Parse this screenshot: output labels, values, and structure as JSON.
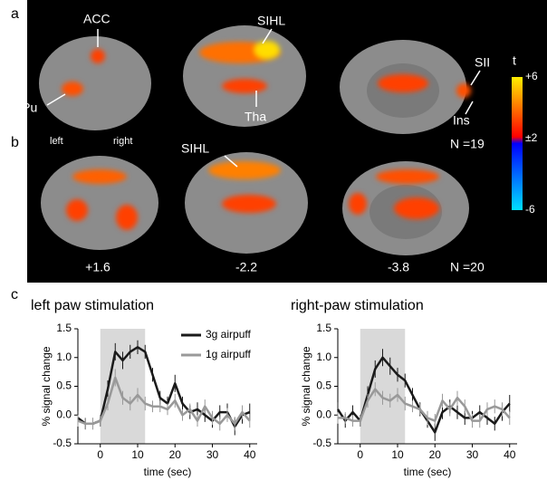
{
  "panel_labels": {
    "a": "a",
    "b": "b",
    "c": "c"
  },
  "brain_panel": {
    "structures": {
      "acc": "ACC",
      "sihl_a": "SIHL",
      "sii": "SII",
      "cpu": "CPu",
      "tha": "Tha",
      "ins": "Ins",
      "sihl_b": "SIHL"
    },
    "sides": {
      "left": "left",
      "right": "right"
    },
    "n_a": "N =19",
    "n_b": "N =20",
    "slice_positions": [
      "+1.6",
      "-2.2",
      "-3.8"
    ],
    "colorbar": {
      "title": "t",
      "labels": [
        "+6",
        "±2",
        "-6"
      ]
    }
  },
  "chart_data": [
    {
      "type": "line",
      "title": "left paw stimulation",
      "xlabel": "time (sec)",
      "ylabel": "% signal change",
      "x": [
        -6,
        -4,
        -2,
        0,
        2,
        4,
        6,
        8,
        10,
        12,
        14,
        16,
        18,
        20,
        22,
        24,
        26,
        28,
        30,
        32,
        34,
        36,
        38,
        40
      ],
      "xlim": [
        -6,
        42
      ],
      "xticks": [
        0,
        10,
        20,
        30,
        40
      ],
      "ylim": [
        -0.5,
        1.5
      ],
      "yticks": [
        -0.5,
        {
          "value": 0,
          "label": "0.0"
        },
        {
          "value": 0.5,
          "label": "0.5"
        },
        {
          "value": 1,
          "label": "1.0"
        },
        1.5
      ],
      "highlight": [
        0,
        12
      ],
      "highlight_color": "#d9d9d9",
      "legend": "upper right",
      "series": [
        {
          "name": "3g airpuff",
          "color": "#1a1a1a",
          "values": [
            -0.05,
            -0.15,
            -0.15,
            -0.1,
            0.45,
            1.1,
            0.95,
            1.1,
            1.18,
            1.1,
            0.7,
            0.3,
            0.2,
            0.55,
            0.2,
            0.05,
            0.1,
            0,
            -0.1,
            0.05,
            0.05,
            -0.2,
            0,
            0.05
          ],
          "errors": [
            0.12,
            0.1,
            0.1,
            0.1,
            0.15,
            0.15,
            0.15,
            0.12,
            0.12,
            0.12,
            0.12,
            0.12,
            0.12,
            0.15,
            0.12,
            0.12,
            0.12,
            0.12,
            0.12,
            0.12,
            0.15,
            0.15,
            0.15,
            0.15
          ]
        },
        {
          "name": "1g airpuff",
          "color": "#999999",
          "values": [
            -0.1,
            -0.15,
            -0.15,
            -0.1,
            0.2,
            0.65,
            0.3,
            0.2,
            0.35,
            0.2,
            0.15,
            0.15,
            0.1,
            0.25,
            0,
            0.1,
            -0.1,
            0.15,
            -0.05,
            -0.15,
            0,
            -0.15,
            0.05,
            -0.1
          ],
          "errors": [
            0.1,
            0.1,
            0.1,
            0.1,
            0.12,
            0.15,
            0.12,
            0.12,
            0.12,
            0.12,
            0.1,
            0.1,
            0.1,
            0.12,
            0.1,
            0.1,
            0.1,
            0.12,
            0.12,
            0.12,
            0.12,
            0.12,
            0.12,
            0.12
          ]
        }
      ]
    },
    {
      "type": "line",
      "title": "right-paw stimulation",
      "xlabel": "time (sec)",
      "ylabel": "% signal change",
      "x": [
        -6,
        -4,
        -2,
        0,
        2,
        4,
        6,
        8,
        10,
        12,
        14,
        16,
        18,
        20,
        22,
        24,
        26,
        28,
        30,
        32,
        34,
        36,
        38,
        40
      ],
      "xlim": [
        -6,
        42
      ],
      "xticks": [
        0,
        10,
        20,
        30,
        40
      ],
      "ylim": [
        -0.5,
        1.5
      ],
      "yticks": [
        -0.5,
        {
          "value": 0,
          "label": "0.0"
        },
        {
          "value": 0.5,
          "label": "0.5"
        },
        {
          "value": 1,
          "label": "1.0"
        },
        1.5
      ],
      "highlight": [
        0,
        12
      ],
      "highlight_color": "#d9d9d9",
      "series": [
        {
          "color": "#1a1a1a",
          "values": [
            0.1,
            -0.1,
            0.05,
            -0.1,
            0.35,
            0.8,
            1.0,
            0.85,
            0.7,
            0.6,
            0.35,
            0.1,
            -0.1,
            -0.3,
            0.05,
            0.15,
            0.05,
            -0.05,
            -0.05,
            0.05,
            -0.05,
            -0.15,
            0.05,
            0.2
          ],
          "errors": [
            0.12,
            0.12,
            0.12,
            0.1,
            0.15,
            0.15,
            0.15,
            0.15,
            0.12,
            0.12,
            0.12,
            0.12,
            0.12,
            0.15,
            0.12,
            0.12,
            0.12,
            0.12,
            0.12,
            0.12,
            0.12,
            0.12,
            0.15,
            0.15
          ]
        },
        {
          "color": "#999999",
          "values": [
            -0.05,
            -0.05,
            -0.1,
            -0.1,
            0.25,
            0.45,
            0.3,
            0.25,
            0.35,
            0.2,
            0.15,
            0.1,
            -0.05,
            -0.1,
            0.25,
            0.1,
            0.3,
            0.15,
            -0.1,
            -0.1,
            0.1,
            0.15,
            0.1,
            -0.05
          ],
          "errors": [
            0.1,
            0.1,
            0.1,
            0.1,
            0.12,
            0.12,
            0.12,
            0.12,
            0.12,
            0.12,
            0.1,
            0.1,
            0.12,
            0.12,
            0.12,
            0.12,
            0.12,
            0.12,
            0.12,
            0.12,
            0.12,
            0.12,
            0.12,
            0.12
          ]
        }
      ]
    }
  ]
}
